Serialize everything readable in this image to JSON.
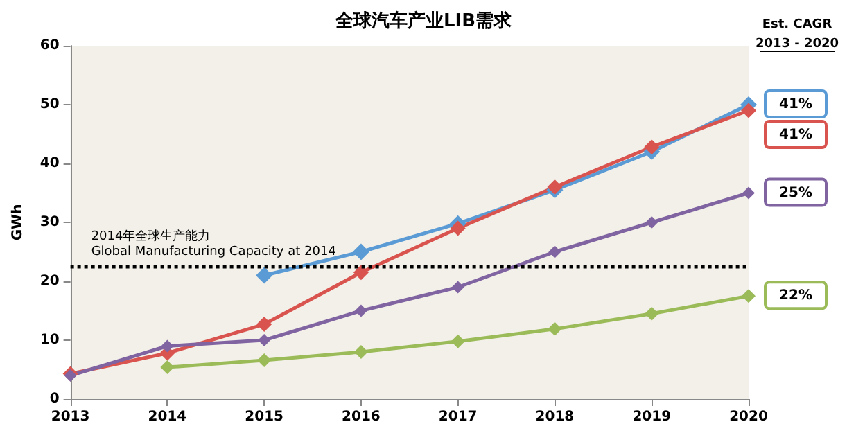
{
  "chart_data": {
    "type": "line",
    "title": "全球汽车产业LIB需求",
    "ylabel": "GWh",
    "categories": [
      "2013",
      "2014",
      "2015",
      "2016",
      "2017",
      "2018",
      "2019",
      "2020"
    ],
    "series": [
      {
        "color": "#5b9bd5",
        "values": [
          null,
          null,
          21,
          25,
          29.8,
          35.5,
          42,
          50
        ]
      },
      {
        "color": "#d9534f",
        "values": [
          4.3,
          7.8,
          12.7,
          21.5,
          29,
          36,
          42.8,
          49
        ]
      },
      {
        "color": "#9bbb59",
        "values": [
          null,
          5.4,
          6.6,
          8,
          9.8,
          11.9,
          14.5,
          17.5
        ]
      },
      {
        "color": "#8064a2",
        "values": [
          4,
          9,
          10,
          15,
          19,
          25,
          30,
          35
        ]
      }
    ],
    "ylim": [
      0,
      60
    ],
    "yticks": [
      0,
      10,
      20,
      30,
      40,
      50,
      60
    ],
    "grid": false,
    "marker": "diamond",
    "line_style": "solid",
    "ref_lines": [
      {
        "axis": "y",
        "value": 22.5,
        "label": "2014年全球生产能力\nGlobal Manufacturing Capacity at 2014",
        "color": "#000000",
        "line_style": "dotted"
      }
    ],
    "annotations": [
      "Est. CAGR\n2013 - 2020",
      {
        "text": "41%",
        "x": "2020",
        "y": 50
      },
      {
        "text": "41%",
        "x": "2020",
        "y": 49
      },
      {
        "text": "22%",
        "x": "2020",
        "y": 17.5
      },
      {
        "text": "25%",
        "x": "2020",
        "y": 35
      }
    ]
  }
}
